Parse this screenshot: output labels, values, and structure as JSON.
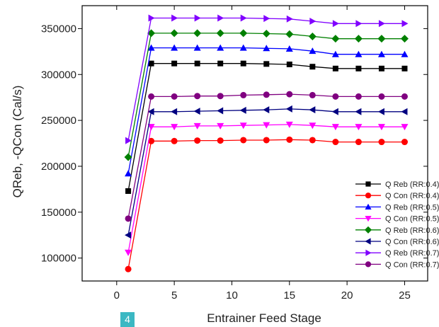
{
  "chart_data": {
    "type": "line",
    "title": "",
    "xlabel": "Entrainer Feed Stage",
    "ylabel": "QReb, -QCon (Cal/s)",
    "xlim": [
      -3,
      27
    ],
    "ylim": [
      75000,
      375000
    ],
    "xticks": [
      "0",
      "5",
      "10",
      "15",
      "20",
      "25"
    ],
    "yticks": [
      "100000",
      "150000",
      "200000",
      "250000",
      "300000",
      "350000"
    ],
    "legend_position": "lower-right",
    "grid": false,
    "x": [
      1,
      3,
      5,
      7,
      9,
      11,
      13,
      15,
      17,
      19,
      21,
      23,
      25
    ],
    "series": [
      {
        "name": "Q Reb (RR:0.4)",
        "color": "#000000",
        "marker": "square",
        "values": [
          173000,
          312000,
          312000,
          312000,
          312000,
          312000,
          311500,
          311000,
          308500,
          306500,
          306500,
          306500,
          306500
        ]
      },
      {
        "name": "Q Con (RR:0.4)",
        "color": "#ff0000",
        "marker": "circle",
        "values": [
          88000,
          227500,
          227500,
          228000,
          228000,
          228500,
          228500,
          229000,
          228500,
          226500,
          226500,
          226500,
          226500
        ]
      },
      {
        "name": "Q Reb (RR:0.5)",
        "color": "#0000ff",
        "marker": "triangle-up",
        "values": [
          192000,
          329000,
          329000,
          329000,
          329000,
          329000,
          328500,
          328000,
          325500,
          322000,
          322000,
          322000,
          322000
        ]
      },
      {
        "name": "Q Con (RR:0.5)",
        "color": "#ff00ff",
        "marker": "triangle-down",
        "values": [
          106000,
          243000,
          243000,
          244000,
          244000,
          244500,
          245000,
          245500,
          244500,
          243000,
          243000,
          243000,
          243000
        ]
      },
      {
        "name": "Q Reb (RR:0.6)",
        "color": "#008000",
        "marker": "diamond",
        "values": [
          210000,
          345000,
          345000,
          345000,
          345000,
          345000,
          344500,
          344000,
          341500,
          339000,
          339000,
          339000,
          339000
        ]
      },
      {
        "name": "Q Con (RR:0.6)",
        "color": "#000080",
        "marker": "triangle-left",
        "values": [
          125000,
          259500,
          259500,
          260000,
          260500,
          261000,
          261500,
          262500,
          261500,
          259500,
          259500,
          259500,
          259500
        ]
      },
      {
        "name": "Q Reb (RR:0.7)",
        "color": "#8000ff",
        "marker": "triangle-right",
        "values": [
          228000,
          361500,
          361500,
          361500,
          361500,
          361500,
          361000,
          360500,
          358000,
          355500,
          355500,
          355500,
          355500
        ]
      },
      {
        "name": "Q Con (RR:0.7)",
        "color": "#800080",
        "marker": "circle",
        "values": [
          143000,
          276000,
          276000,
          276500,
          276500,
          277500,
          278000,
          278500,
          277500,
          276000,
          276000,
          276000,
          276000
        ]
      }
    ]
  },
  "page_badge": "4"
}
